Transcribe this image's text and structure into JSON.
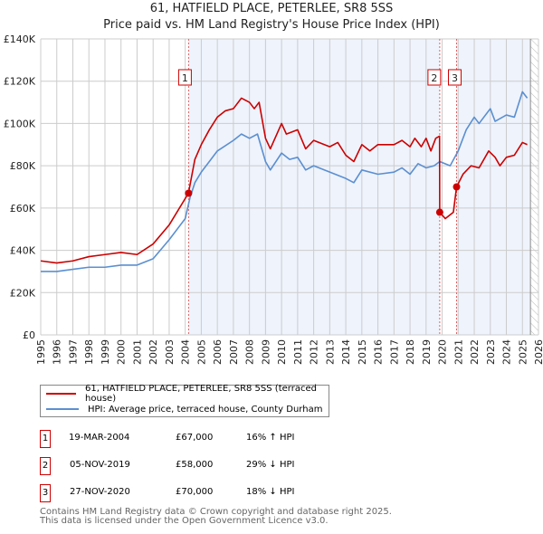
{
  "chart_data": {
    "type": "line",
    "title": "61, HATFIELD PLACE, PETERLEE, SR8 5SS",
    "subtitle": "Price paid vs. HM Land Registry's House Price Index (HPI)",
    "xlim": [
      1995,
      2026
    ],
    "ylim": [
      0,
      140000
    ],
    "x_ticks": [
      "1995",
      "1996",
      "1997",
      "1998",
      "1999",
      "2000",
      "2001",
      "2002",
      "2003",
      "2004",
      "2005",
      "2006",
      "2007",
      "2008",
      "2009",
      "2010",
      "2011",
      "2012",
      "2013",
      "2014",
      "2015",
      "2016",
      "2017",
      "2018",
      "2019",
      "2020",
      "2021",
      "2022",
      "2023",
      "2024",
      "2025",
      "2026"
    ],
    "y_ticks": [
      {
        "v": 0,
        "label": "£0"
      },
      {
        "v": 20000,
        "label": "£20K"
      },
      {
        "v": 40000,
        "label": "£40K"
      },
      {
        "v": 60000,
        "label": "£60K"
      },
      {
        "v": 80000,
        "label": "£80K"
      },
      {
        "v": 100000,
        "label": "£100K"
      },
      {
        "v": 120000,
        "label": "£120K"
      },
      {
        "v": 140000,
        "label": "£140K"
      }
    ],
    "series": [
      {
        "name": "61, HATFIELD PLACE, PETERLEE, SR8 5SS (terraced house)",
        "color": "#cc0000",
        "points": [
          [
            1995,
            35
          ],
          [
            1996,
            34
          ],
          [
            1997,
            35
          ],
          [
            1998,
            37
          ],
          [
            1999,
            38
          ],
          [
            2000,
            39
          ],
          [
            2001,
            38
          ],
          [
            2002,
            43
          ],
          [
            2003,
            52
          ],
          [
            2004.2,
            67
          ],
          [
            2004.6,
            83
          ],
          [
            2005,
            90
          ],
          [
            2005.5,
            97
          ],
          [
            2006,
            103
          ],
          [
            2006.5,
            106
          ],
          [
            2007,
            107
          ],
          [
            2007.5,
            112
          ],
          [
            2008,
            110
          ],
          [
            2008.3,
            107
          ],
          [
            2008.6,
            110
          ],
          [
            2009,
            93
          ],
          [
            2009.3,
            88
          ],
          [
            2010,
            100
          ],
          [
            2010.3,
            95
          ],
          [
            2011,
            97
          ],
          [
            2011.5,
            88
          ],
          [
            2012,
            92
          ],
          [
            2013,
            89
          ],
          [
            2013.5,
            91
          ],
          [
            2014,
            85
          ],
          [
            2014.5,
            82
          ],
          [
            2015,
            90
          ],
          [
            2015.5,
            87
          ],
          [
            2016,
            90
          ],
          [
            2017,
            90
          ],
          [
            2017.5,
            92
          ],
          [
            2018,
            89
          ],
          [
            2018.3,
            93
          ],
          [
            2018.7,
            89
          ],
          [
            2019,
            93
          ],
          [
            2019.3,
            87
          ],
          [
            2019.6,
            93
          ],
          [
            2019.84,
            94
          ],
          [
            2019.85,
            58
          ],
          [
            2020.2,
            55
          ],
          [
            2020.7,
            58
          ],
          [
            2020.9,
            70
          ],
          [
            2021.3,
            76
          ],
          [
            2021.8,
            80
          ],
          [
            2022.3,
            79
          ],
          [
            2022.9,
            87
          ],
          [
            2023.3,
            84
          ],
          [
            2023.6,
            80
          ],
          [
            2024,
            84
          ],
          [
            2024.5,
            85
          ],
          [
            2025,
            91
          ],
          [
            2025.3,
            90
          ]
        ]
      },
      {
        "name": "HPI: Average price, terraced house, County Durham",
        "color": "#5b8fd0",
        "points": [
          [
            1995,
            30
          ],
          [
            1996,
            30
          ],
          [
            1997,
            31
          ],
          [
            1998,
            32
          ],
          [
            1999,
            32
          ],
          [
            2000,
            33
          ],
          [
            2001,
            33
          ],
          [
            2002,
            36
          ],
          [
            2003,
            45
          ],
          [
            2004,
            55
          ],
          [
            2004.3,
            65
          ],
          [
            2004.6,
            72
          ],
          [
            2005,
            77
          ],
          [
            2005.5,
            82
          ],
          [
            2006,
            87
          ],
          [
            2007,
            92
          ],
          [
            2007.5,
            95
          ],
          [
            2008,
            93
          ],
          [
            2008.5,
            95
          ],
          [
            2009,
            82
          ],
          [
            2009.3,
            78
          ],
          [
            2010,
            86
          ],
          [
            2010.5,
            83
          ],
          [
            2011,
            84
          ],
          [
            2011.5,
            78
          ],
          [
            2012,
            80
          ],
          [
            2013,
            77
          ],
          [
            2014,
            74
          ],
          [
            2014.5,
            72
          ],
          [
            2015,
            78
          ],
          [
            2016,
            76
          ],
          [
            2017,
            77
          ],
          [
            2017.5,
            79
          ],
          [
            2018,
            76
          ],
          [
            2018.5,
            81
          ],
          [
            2019,
            79
          ],
          [
            2019.5,
            80
          ],
          [
            2019.85,
            82
          ],
          [
            2020.5,
            80
          ],
          [
            2021,
            87
          ],
          [
            2021.5,
            97
          ],
          [
            2022,
            103
          ],
          [
            2022.3,
            100
          ],
          [
            2023,
            107
          ],
          [
            2023.3,
            101
          ],
          [
            2024,
            104
          ],
          [
            2024.5,
            103
          ],
          [
            2025,
            115
          ],
          [
            2025.3,
            112
          ]
        ]
      }
    ],
    "sales": [
      {
        "n": "1",
        "x": 2004.21,
        "price": 67,
        "date": "19-MAR-2004",
        "price_label": "£67,000",
        "hpi": "16% ↑ HPI"
      },
      {
        "n": "2",
        "x": 2019.85,
        "price": 58,
        "date": "05-NOV-2019",
        "price_label": "£58,000",
        "hpi": "29% ↓ HPI"
      },
      {
        "n": "3",
        "x": 2020.9,
        "price": 70,
        "date": "27-NOV-2020",
        "price_label": "£70,000",
        "hpi": "18% ↓ HPI"
      }
    ],
    "forecast_start": 2025.5,
    "units": "thousands GBP"
  },
  "footer": [
    "Contains HM Land Registry data © Crown copyright and database right 2025.",
    "This data is licensed under the Open Government Licence v3.0."
  ]
}
